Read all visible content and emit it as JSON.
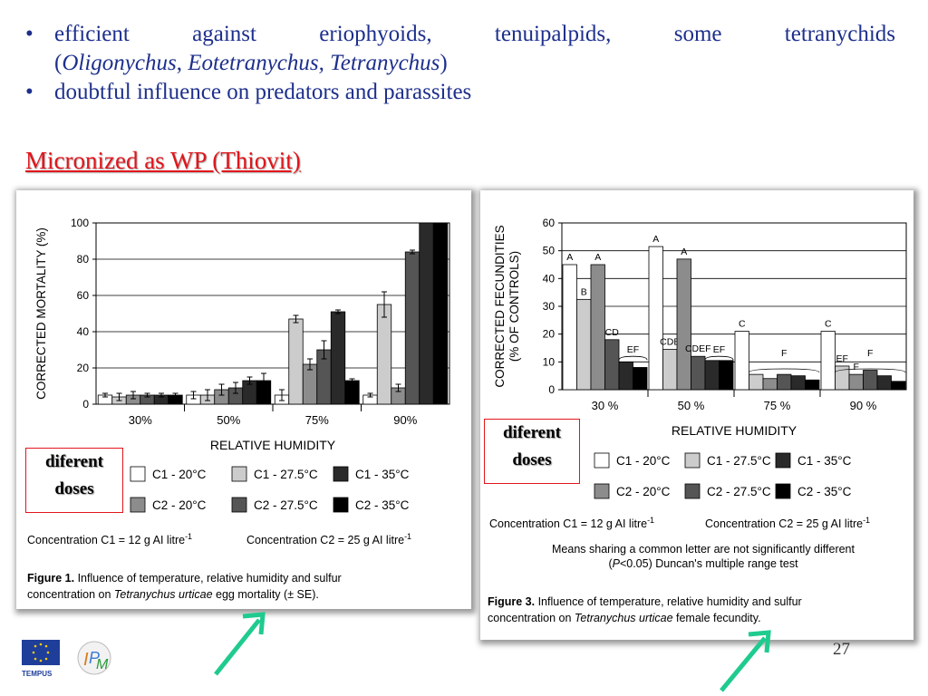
{
  "bullets": {
    "item1_line1": "efficient against eriophyoids, tenuipalpids, some tetranychids",
    "item1_line2_open": "(",
    "item1_genus1": "Oligonychus",
    "item1_sep1": ", ",
    "item1_genus2": "Eotetranychus, Tetranychus",
    "item1_close": ")",
    "item2": "doubtful influence on predators and parassites",
    "bullet_char": "•"
  },
  "subtitle": "Micronized as WP (Thiovit)",
  "doses_label_line1": "diferent",
  "doses_label_line2": "doses",
  "page_number": "27",
  "logo_text": "TEMPUS",
  "colors": {
    "text_blue": "#1d2f8c",
    "title_red": "#e0161c",
    "arrow_green": "#1fcb8e",
    "series": [
      "#ffffff",
      "#cccccc",
      "#8c8c8c",
      "#555555",
      "#2a2a2a",
      "#000000"
    ]
  },
  "chart_data": [
    {
      "type": "bar",
      "ylabel": "CORRECTED MORTALITY (%)",
      "xlabel": "RELATIVE HUMIDITY",
      "categories": [
        "30%",
        "50%",
        "75%",
        "90%"
      ],
      "ylim": [
        0,
        100
      ],
      "yticks": [
        0,
        20,
        40,
        60,
        80,
        100
      ],
      "grid": true,
      "series": [
        {
          "name": "C1 - 20°C",
          "values": [
            5,
            5,
            5,
            5
          ],
          "err": [
            1,
            2,
            3,
            1
          ]
        },
        {
          "name": "C2 - 20°C",
          "values": [
            5,
            8,
            22,
            9
          ],
          "err": [
            2,
            3,
            3,
            2
          ]
        },
        {
          "name": "C1 - 27.5°C",
          "values": [
            4,
            5,
            47,
            55
          ],
          "err": [
            2,
            3,
            2,
            7
          ]
        },
        {
          "name": "C2 - 27.5°C",
          "values": [
            5,
            9,
            30,
            84
          ],
          "err": [
            1,
            3,
            5,
            1
          ]
        },
        {
          "name": "C1 - 35°C",
          "values": [
            5,
            13,
            51,
            100
          ],
          "err": [
            1,
            2,
            1,
            0
          ]
        },
        {
          "name": "C2 - 35°C",
          "values": [
            5,
            13,
            13,
            100
          ],
          "err": [
            1,
            4,
            1,
            0
          ]
        }
      ],
      "legend": [
        {
          "name": "C1 - 20°C"
        },
        {
          "name": "C1 - 27.5°C"
        },
        {
          "name": "C1 - 35°C"
        },
        {
          "name": "C2 - 20°C"
        },
        {
          "name": "C2 - 27.5°C"
        },
        {
          "name": "C2 - 35°C"
        }
      ],
      "concentration_c1": "Concentration C1 = 12 g AI litre",
      "concentration_c2": "Concentration C2 = 25 g AI litre",
      "sup": "-1",
      "caption_bold": "Figure 1.",
      "caption_line1": " Influence of temperature, relative humidity and sulfur",
      "caption_line2_pre": "concentration on ",
      "caption_species": "Tetranychus urticae",
      "caption_line2_post": " egg mortality (± SE)."
    },
    {
      "type": "bar",
      "ylabel": "CORRECTED FECUNDITIES",
      "ylabel2": "(% OF CONTROLS)",
      "xlabel": "RELATIVE HUMIDITY",
      "categories": [
        "30 %",
        "50 %",
        "75 %",
        "90 %"
      ],
      "ylim": [
        0,
        60
      ],
      "yticks": [
        0,
        10,
        20,
        30,
        40,
        50,
        60
      ],
      "grid": true,
      "series": [
        {
          "name": "C1 - 20°C",
          "values": [
            45,
            51.5,
            21,
            21
          ],
          "letters": [
            "A",
            "A",
            "C",
            "C"
          ]
        },
        {
          "name": "C2 - 20°C",
          "values": [
            45,
            47,
            4,
            5.5
          ],
          "letters": [
            "A",
            "A",
            "",
            "F"
          ]
        },
        {
          "name": "C1 - 27.5°C",
          "values": [
            32.5,
            14.5,
            5.5,
            8.5
          ],
          "letters": [
            "B",
            "CDE",
            "",
            "EF"
          ]
        },
        {
          "name": "C2 - 27.5°C",
          "values": [
            18,
            12,
            5.5,
            7
          ],
          "letters": [
            "CD",
            "CDEF",
            "",
            ""
          ]
        },
        {
          "name": "C1 - 35°C",
          "values": [
            10,
            10.5,
            5,
            5
          ],
          "letters": [
            "",
            "",
            "",
            ""
          ]
        },
        {
          "name": "C2 - 35°C",
          "values": [
            8,
            10.5,
            3.5,
            3
          ],
          "letters": [
            "",
            "",
            "",
            ""
          ]
        }
      ],
      "group_letters": [
        {
          "category": 0,
          "text": "EF"
        },
        {
          "category": 1,
          "text": "EF"
        },
        {
          "category": 2,
          "text": "F"
        },
        {
          "category": 3,
          "text": "F"
        }
      ],
      "legend": [
        {
          "name": "C1 - 20°C"
        },
        {
          "name": "C1 - 27.5°C"
        },
        {
          "name": "C1 - 35°C"
        },
        {
          "name": "C2 - 20°C"
        },
        {
          "name": "C2 - 27.5°C"
        },
        {
          "name": "C2 - 35°C"
        }
      ],
      "concentration_c1": "Concentration C1 = 12 g AI litre",
      "concentration_c2": "Concentration C2 = 25 g AI litre",
      "sup": "-1",
      "means_line1": "Means sharing a common letter are not significantly different",
      "means_line2_pre": "(",
      "means_p": "P",
      "means_line2_post": "<0.05) Duncan's multiple range test",
      "caption_bold": "Figure 3.",
      "caption_line1": " Influence of temperature, relative humidity and sulfur",
      "caption_line2_pre": "concentration on ",
      "caption_species": "Tetranychus urticae",
      "caption_line2_post": " female fecundity."
    }
  ]
}
